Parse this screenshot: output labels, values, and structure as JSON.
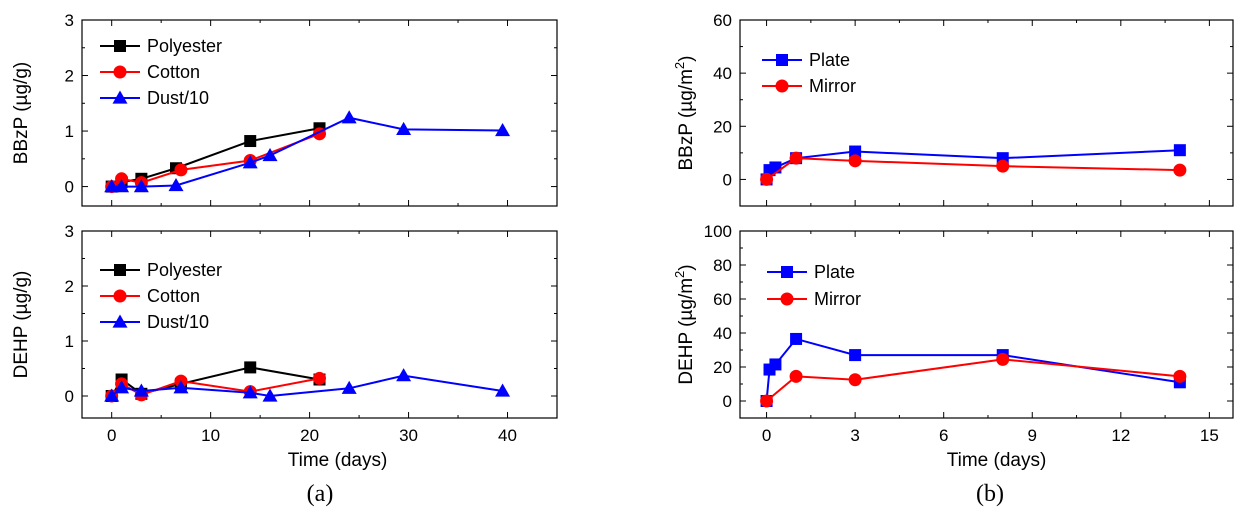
{
  "panel_labels": [
    "(a)",
    "(b)"
  ],
  "chart_data": [
    {
      "type": "line",
      "panel": "(a)",
      "xlabel": "",
      "ylabel_text": "BBzP",
      "ylabel_unit": "(µg/g)",
      "xlim": [
        -3,
        45
      ],
      "ylim": [
        -0.35,
        3
      ],
      "xticks": [
        0,
        10,
        20,
        30,
        40
      ],
      "yticks": [
        0,
        1,
        2,
        3
      ],
      "show_xtick_labels": false,
      "legend": "top-left",
      "series": [
        {
          "name": "Polyester",
          "color": "#000000",
          "marker": "square",
          "x": [
            0,
            1,
            3,
            6.5,
            14,
            21
          ],
          "y": [
            0,
            0.08,
            0.14,
            0.33,
            0.82,
            1.05
          ]
        },
        {
          "name": "Cotton",
          "color": "#ff0000",
          "marker": "circle",
          "x": [
            0,
            1,
            3,
            7,
            14,
            21
          ],
          "y": [
            0,
            0.14,
            0.07,
            0.3,
            0.47,
            0.95
          ]
        },
        {
          "name": "Dust/10",
          "color": "#0000ff",
          "marker": "triangle",
          "x": [
            0,
            1,
            3,
            6.5,
            14,
            16,
            24,
            29.5,
            39.5
          ],
          "y": [
            0,
            0,
            0,
            0.02,
            0.43,
            0.56,
            1.24,
            1.03,
            1.01
          ]
        }
      ]
    },
    {
      "type": "line",
      "panel": "(a)",
      "xlabel": "Time (days)",
      "ylabel_text": "DEHP",
      "ylabel_unit": "(µg/g)",
      "xlim": [
        -3,
        45
      ],
      "ylim": [
        -0.4,
        3
      ],
      "xticks": [
        0,
        10,
        20,
        30,
        40
      ],
      "yticks": [
        0,
        1,
        2,
        3
      ],
      "show_xtick_labels": true,
      "legend": "top-left",
      "series": [
        {
          "name": "Polyester",
          "color": "#000000",
          "marker": "square",
          "x": [
            0,
            1,
            3,
            7,
            14,
            21
          ],
          "y": [
            0,
            0.3,
            0.04,
            0.22,
            0.52,
            0.3
          ]
        },
        {
          "name": "Cotton",
          "color": "#ff0000",
          "marker": "circle",
          "x": [
            0,
            1,
            3,
            7,
            14,
            21
          ],
          "y": [
            0,
            0.22,
            0.02,
            0.27,
            0.08,
            0.32
          ]
        },
        {
          "name": "Dust/10",
          "color": "#0000ff",
          "marker": "triangle",
          "x": [
            0,
            1,
            3,
            7,
            14,
            16,
            24,
            29.5,
            39.5
          ],
          "y": [
            0,
            0.15,
            0.09,
            0.15,
            0.06,
            0,
            0.14,
            0.37,
            0.09
          ]
        }
      ]
    },
    {
      "type": "line",
      "panel": "(b)",
      "xlabel": "",
      "ylabel_text": "BBzP",
      "ylabel_unit": "(µg/m",
      "ylabel_sup": "2",
      "ylabel_close": ")",
      "xlim": [
        -0.9,
        15.8
      ],
      "ylim": [
        -10,
        60
      ],
      "xticks": [
        0,
        3,
        6,
        9,
        12,
        15
      ],
      "yticks": [
        0,
        20,
        40,
        60
      ],
      "show_xtick_labels": false,
      "legend": "top-left",
      "series": [
        {
          "name": "Plate",
          "color": "#0000ff",
          "marker": "square",
          "x": [
            0,
            0.1,
            0.3,
            1,
            3,
            8,
            14
          ],
          "y": [
            0,
            3.5,
            4.5,
            8,
            10.5,
            8,
            11
          ]
        },
        {
          "name": "Mirror",
          "color": "#ff0000",
          "marker": "circle",
          "x": [
            0,
            1,
            3,
            8,
            14
          ],
          "y": [
            0,
            8,
            7,
            5,
            3.5
          ]
        }
      ]
    },
    {
      "type": "line",
      "panel": "(b)",
      "xlabel": "Time (days)",
      "ylabel_text": "DEHP",
      "ylabel_unit": "(µg/m",
      "ylabel_sup": "2",
      "ylabel_close": ")",
      "xlim": [
        -0.9,
        15.8
      ],
      "ylim": [
        -10,
        100
      ],
      "xticks": [
        0,
        3,
        6,
        9,
        12,
        15
      ],
      "yticks": [
        0,
        20,
        40,
        60,
        80,
        100
      ],
      "show_xtick_labels": true,
      "legend": "top-left",
      "series": [
        {
          "name": "Plate",
          "color": "#0000ff",
          "marker": "square",
          "x": [
            0,
            0.1,
            0.3,
            1,
            3,
            8,
            14
          ],
          "y": [
            0,
            18.5,
            21.5,
            36.5,
            27,
            27,
            11
          ]
        },
        {
          "name": "Mirror",
          "color": "#ff0000",
          "marker": "circle",
          "x": [
            0,
            1,
            3,
            8,
            14
          ],
          "y": [
            0,
            14.5,
            12.5,
            24.5,
            14.5
          ]
        }
      ]
    }
  ]
}
